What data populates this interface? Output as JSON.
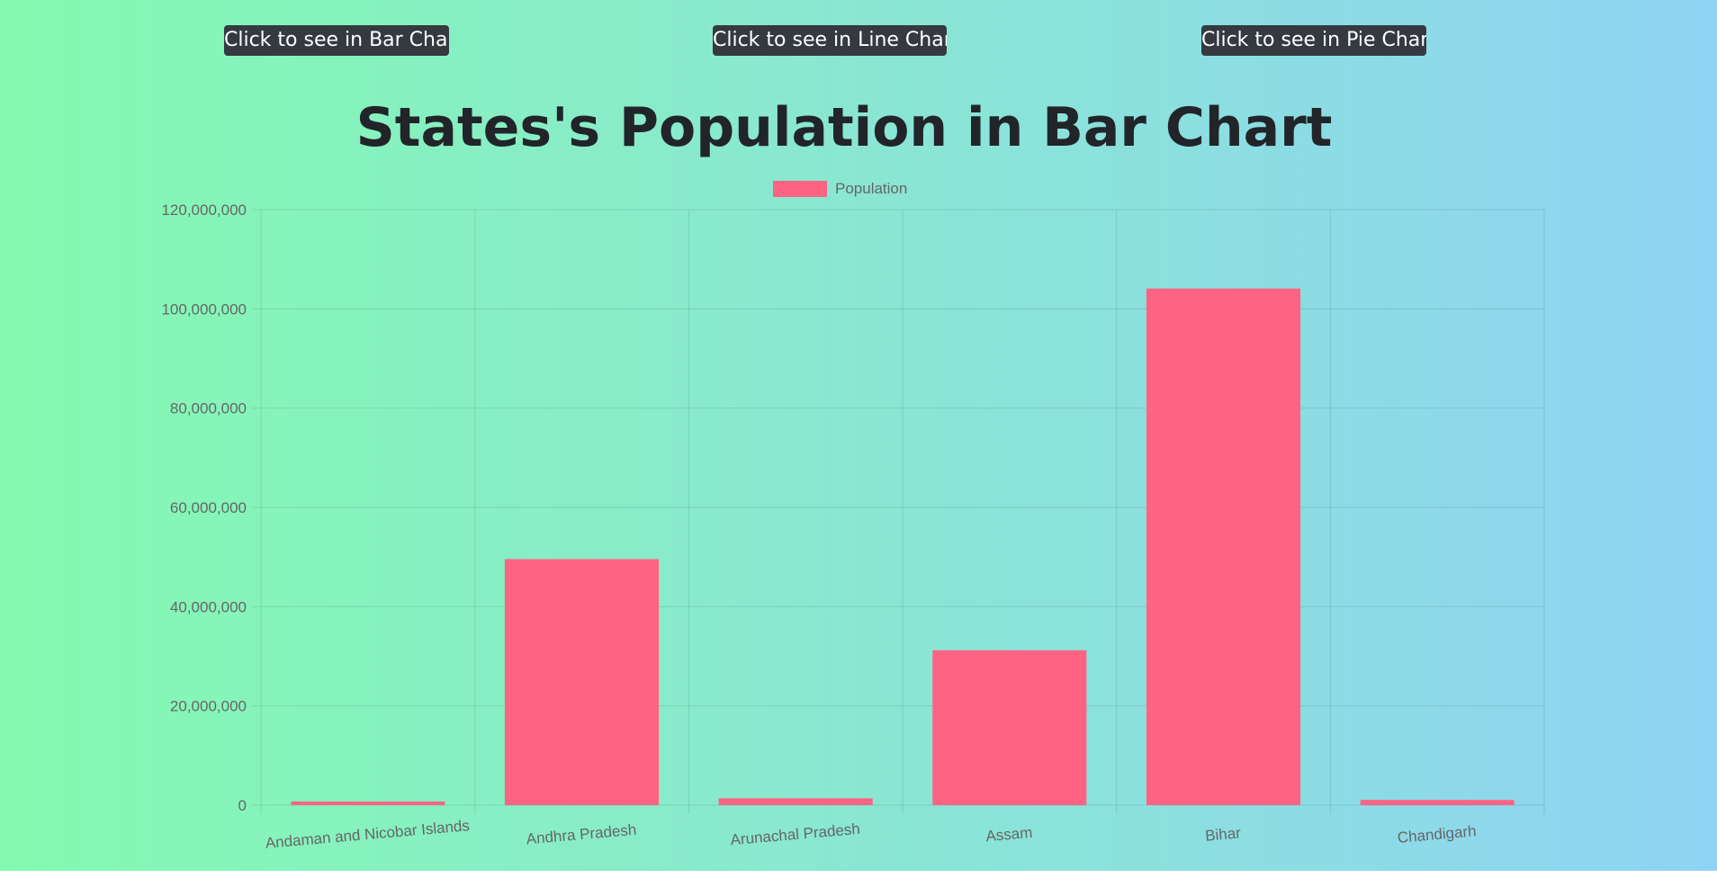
{
  "buttons": {
    "bar_label": "Click to see in Bar Chart",
    "line_label": "Click to see in Line Chart",
    "pie_label": "Click to see in Pie Chart"
  },
  "page_title": "States's Population in Bar Chart",
  "colors": {
    "background_start": "#84fab0",
    "background_end": "#8fd3f4",
    "button_bg": "#343a40",
    "bar_fill": "#ff6384",
    "text_dark": "#212529",
    "axis_text": "#666666"
  },
  "chart_data": {
    "type": "bar",
    "title": "States's Population in Bar Chart",
    "categories": [
      "Andaman and Nicobar Islands",
      "Andhra Pradesh",
      "Arunachal Pradesh",
      "Assam",
      "Bihar",
      "Chandigarh"
    ],
    "series": [
      {
        "name": "Population",
        "values": [
          380581,
          49577103,
          1383727,
          31205576,
          104099452,
          1055450
        ],
        "color": "#ff6384"
      }
    ],
    "ylim": [
      0,
      120000000
    ],
    "y_ticks": [
      0,
      20000000,
      40000000,
      60000000,
      80000000,
      100000000,
      120000000
    ],
    "y_tick_labels": [
      "0",
      "20,000,000",
      "40,000,000",
      "60,000,000",
      "80,000,000",
      "100,000,000",
      "120,000,000"
    ],
    "xlabel": "",
    "ylabel": "",
    "grid": true,
    "legend_position": "top"
  }
}
